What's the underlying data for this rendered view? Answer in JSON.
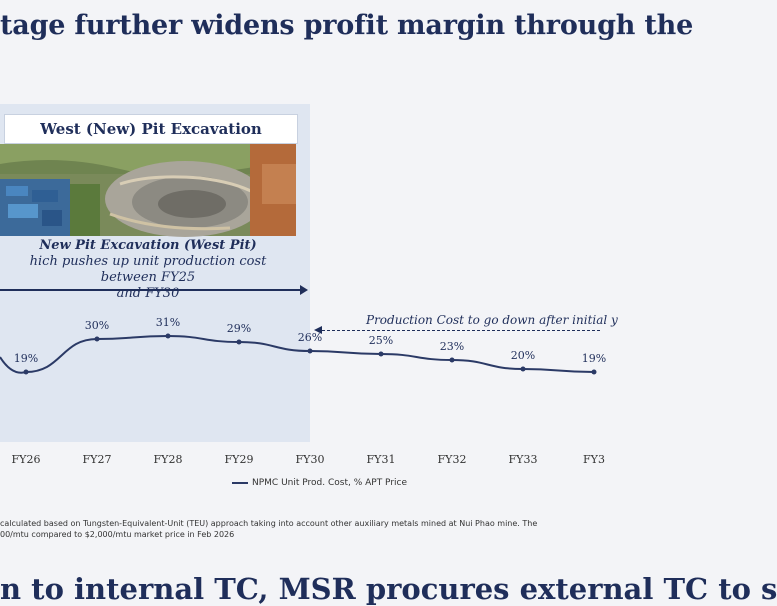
{
  "slide": {
    "title": "tage further widens profit margin through the",
    "panel": {
      "header": "West (New) Pit Excavation",
      "caption_title": "New Pit Excavation (West Pit)",
      "caption_line1": "hich pushes up unit production cost between FY25",
      "caption_line2": "and FY30"
    },
    "note": "Production Cost to go down after initial y",
    "legend": "NPMC Unit Prod. Cost, % APT Price",
    "footnote_line1": "calculated based on Tungsten-Equivalent-Unit (TEU) approach taking into account other auxiliary metals mined at Nui Phao mine. The",
    "footnote_line2": "00/mtu compared to $2,000/mtu market price in Feb 2026",
    "bottom_title": "n to internal TC, MSR procures external TC to s"
  },
  "chart_data": {
    "type": "line",
    "categories": [
      "FY26",
      "FY27",
      "FY28",
      "FY29",
      "FY30",
      "FY31",
      "FY32",
      "FY33",
      "FY3"
    ],
    "series": [
      {
        "name": "NPMC Unit Prod. Cost, % APT Price",
        "values": [
          19,
          30,
          31,
          29,
          26,
          25,
          23,
          20,
          19
        ]
      }
    ],
    "labels": [
      "19%",
      "30%",
      "31%",
      "29%",
      "26%",
      "25%",
      "23%",
      "20%",
      "19%"
    ],
    "ylabel": "",
    "colors": {
      "line": "#2b3a66",
      "text": "#1f2e5a"
    }
  }
}
